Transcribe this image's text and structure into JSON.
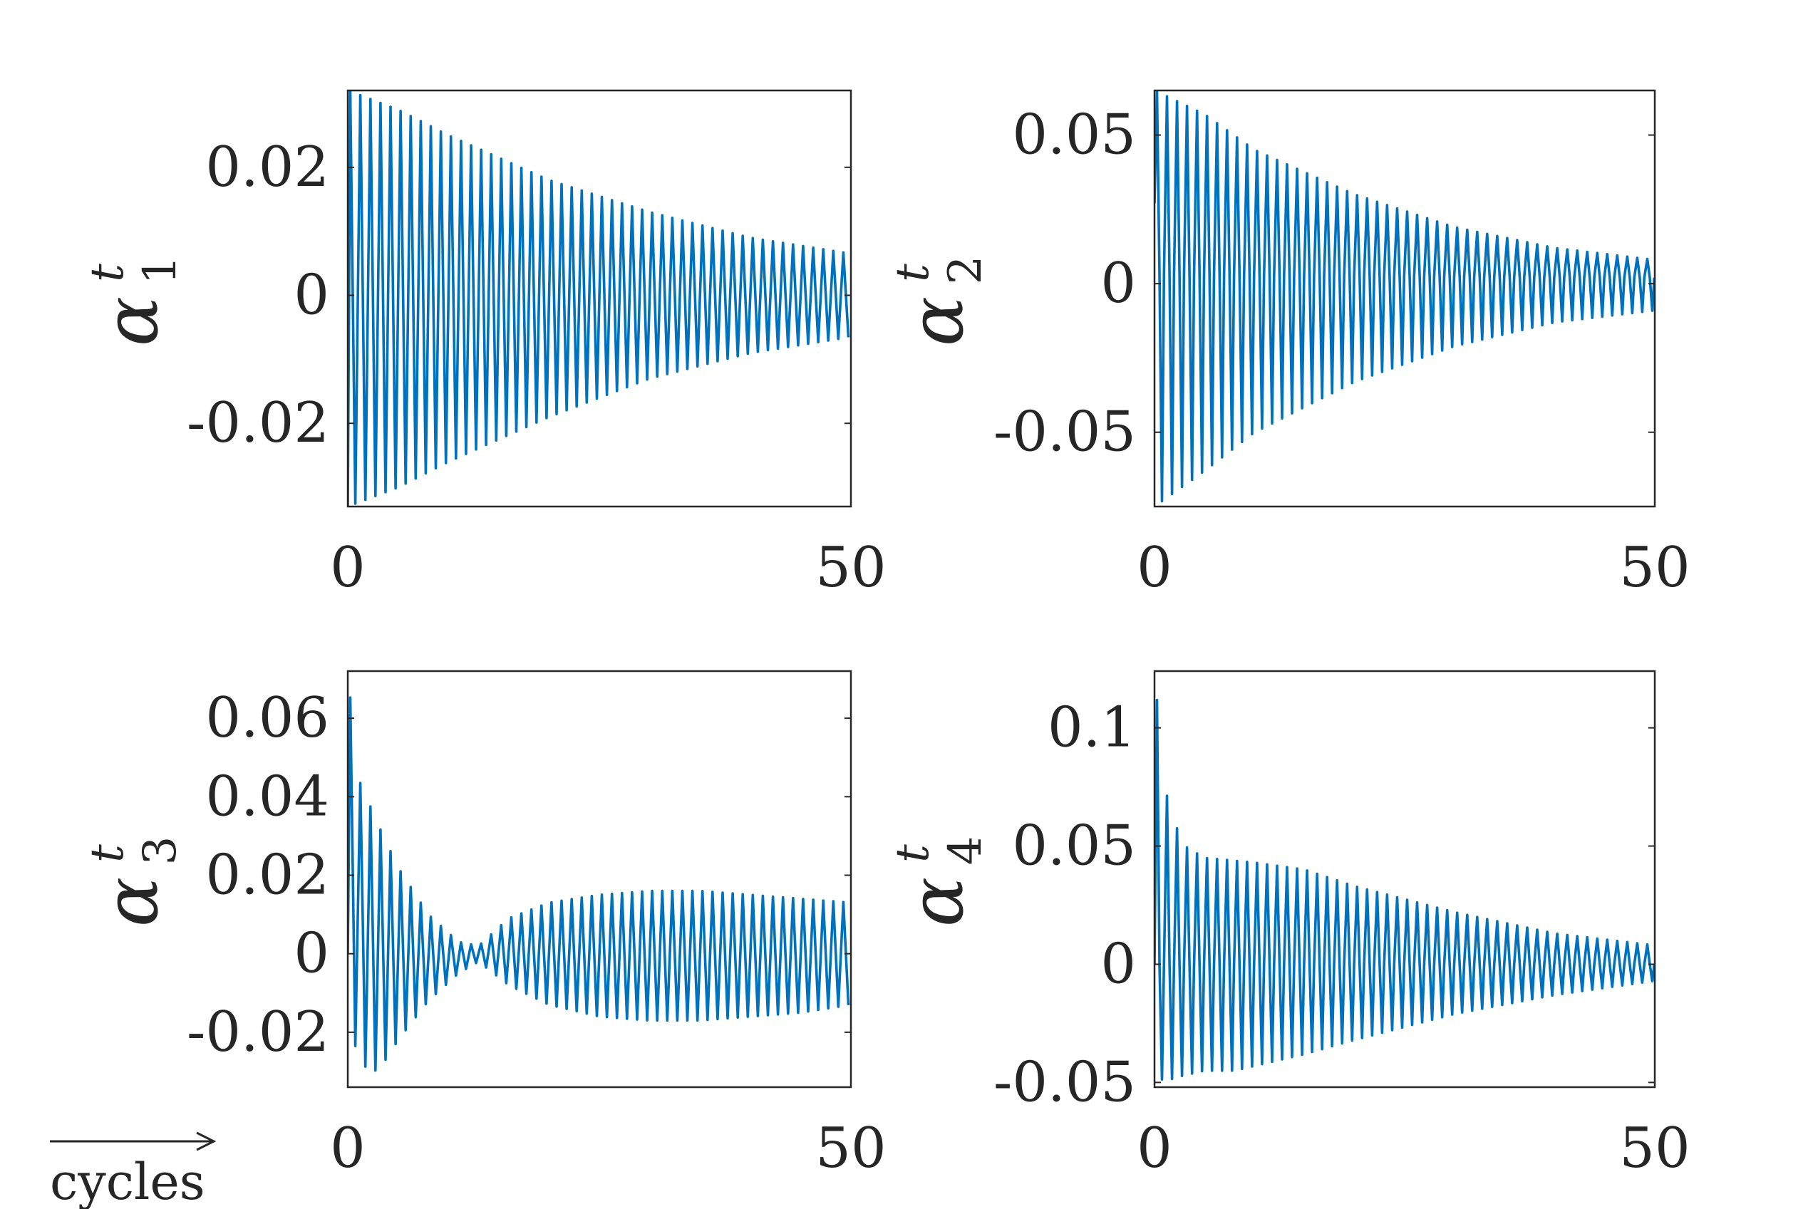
{
  "figure": {
    "x_axis_note": "cycles"
  },
  "chart_data": [
    {
      "type": "line",
      "ylabel": {
        "base": "α",
        "sup": "t",
        "sub": "1"
      },
      "xlim": [
        0,
        50
      ],
      "ylim": [
        -0.033,
        0.032
      ],
      "xticks": [
        0,
        50
      ],
      "xtick_labels": [
        "0",
        "50"
      ],
      "yticks": [
        -0.02,
        0,
        0.02
      ],
      "ytick_labels": [
        "-0.02",
        "0",
        "0.02"
      ],
      "series": [
        {
          "color": "#0072BD",
          "cycles": 50,
          "points_per_cycle": 1,
          "upper_env": [
            [
              0,
              0.032
            ],
            [
              5,
              0.029
            ],
            [
              10,
              0.025
            ],
            [
              20,
              0.018
            ],
            [
              30,
              0.013
            ],
            [
              40,
              0.009
            ],
            [
              50,
              0.0065
            ]
          ],
          "lower_env": [
            [
              0,
              -0.033
            ],
            [
              5,
              -0.03
            ],
            [
              10,
              -0.026
            ],
            [
              20,
              -0.019
            ],
            [
              30,
              -0.013
            ],
            [
              40,
              -0.009
            ],
            [
              50,
              -0.0065
            ]
          ],
          "start_value": -0.033
        }
      ]
    },
    {
      "type": "line",
      "ylabel": {
        "base": "α",
        "sup": "t",
        "sub": "2"
      },
      "xlim": [
        0,
        50
      ],
      "ylim": [
        -0.075,
        0.065
      ],
      "xticks": [
        0,
        50
      ],
      "xtick_labels": [
        "0",
        "50"
      ],
      "yticks": [
        -0.05,
        0,
        0.05
      ],
      "ytick_labels": [
        "-0.05",
        "0",
        "0.05"
      ],
      "series": [
        {
          "color": "#0072BD",
          "cycles": 50,
          "points_per_cycle": 2,
          "upper_env": [
            [
              0,
              0.065
            ],
            [
              5,
              0.057
            ],
            [
              10,
              0.045
            ],
            [
              20,
              0.03
            ],
            [
              30,
              0.019
            ],
            [
              40,
              0.012
            ],
            [
              50,
              0.008
            ]
          ],
          "lower_env": [
            [
              0,
              -0.075
            ],
            [
              5,
              -0.063
            ],
            [
              10,
              -0.05
            ],
            [
              20,
              -0.033
            ],
            [
              30,
              -0.021
            ],
            [
              40,
              -0.013
            ],
            [
              50,
              -0.009
            ]
          ],
          "mid_env": [
            [
              0,
              0.003
            ],
            [
              50,
              0.002
            ]
          ],
          "start_value": 0.027
        }
      ]
    },
    {
      "type": "line",
      "ylabel": {
        "base": "α",
        "sup": "t",
        "sub": "3"
      },
      "xlim": [
        0,
        50
      ],
      "ylim": [
        -0.034,
        0.072
      ],
      "xticks": [
        0,
        50
      ],
      "xtick_labels": [
        "0",
        "50"
      ],
      "yticks": [
        -0.02,
        0,
        0.02,
        0.04,
        0.06
      ],
      "ytick_labels": [
        "-0.02",
        "0",
        "0.02",
        "0.04",
        "0.06"
      ],
      "series": [
        {
          "color": "#0072BD",
          "cycles": 50,
          "points_per_cycle": 1,
          "upper_env": [
            [
              0,
              0.072
            ],
            [
              1,
              0.045
            ],
            [
              3,
              0.033
            ],
            [
              5,
              0.022
            ],
            [
              8,
              0.01
            ],
            [
              11,
              0.003
            ],
            [
              13,
              0.002
            ],
            [
              16,
              0.009
            ],
            [
              20,
              0.013
            ],
            [
              25,
              0.015
            ],
            [
              30,
              0.016
            ],
            [
              35,
              0.016
            ],
            [
              40,
              0.015
            ],
            [
              45,
              0.014
            ],
            [
              50,
              0.013
            ]
          ],
          "lower_env": [
            [
              0,
              -0.01
            ],
            [
              1,
              -0.028
            ],
            [
              3,
              -0.03
            ],
            [
              5,
              -0.022
            ],
            [
              8,
              -0.012
            ],
            [
              11,
              -0.005
            ],
            [
              13,
              -0.002
            ],
            [
              16,
              -0.008
            ],
            [
              20,
              -0.013
            ],
            [
              25,
              -0.016
            ],
            [
              30,
              -0.017
            ],
            [
              35,
              -0.017
            ],
            [
              40,
              -0.016
            ],
            [
              45,
              -0.015
            ],
            [
              50,
              -0.013
            ]
          ],
          "start_value": 0.0
        }
      ]
    },
    {
      "type": "line",
      "ylabel": {
        "base": "α",
        "sup": "t",
        "sub": "4"
      },
      "xlim": [
        0,
        50
      ],
      "ylim": [
        -0.052,
        0.124
      ],
      "xticks": [
        0,
        50
      ],
      "xtick_labels": [
        "0",
        "50"
      ],
      "yticks": [
        -0.05,
        0,
        0.05,
        0.1
      ],
      "ytick_labels": [
        "-0.05",
        "0",
        "0.05",
        "0.1"
      ],
      "series": [
        {
          "color": "#0072BD",
          "cycles": 50,
          "points_per_cycle": 2,
          "upper_env": [
            [
              0,
              0.124
            ],
            [
              1,
              0.075
            ],
            [
              2,
              0.06
            ],
            [
              3,
              0.05
            ],
            [
              5,
              0.045
            ],
            [
              10,
              0.043
            ],
            [
              15,
              0.04
            ],
            [
              20,
              0.033
            ],
            [
              30,
              0.022
            ],
            [
              40,
              0.013
            ],
            [
              50,
              0.008
            ]
          ],
          "lower_env": [
            [
              0,
              -0.045
            ],
            [
              1,
              -0.05
            ],
            [
              2,
              -0.048
            ],
            [
              5,
              -0.045
            ],
            [
              8,
              -0.045
            ],
            [
              10,
              -0.043
            ],
            [
              15,
              -0.038
            ],
            [
              20,
              -0.032
            ],
            [
              30,
              -0.021
            ],
            [
              40,
              -0.013
            ],
            [
              50,
              -0.007
            ]
          ],
          "mid_env": [
            [
              0,
              0.0
            ],
            [
              50,
              0.0
            ]
          ],
          "start_value": 0.0
        }
      ]
    }
  ]
}
